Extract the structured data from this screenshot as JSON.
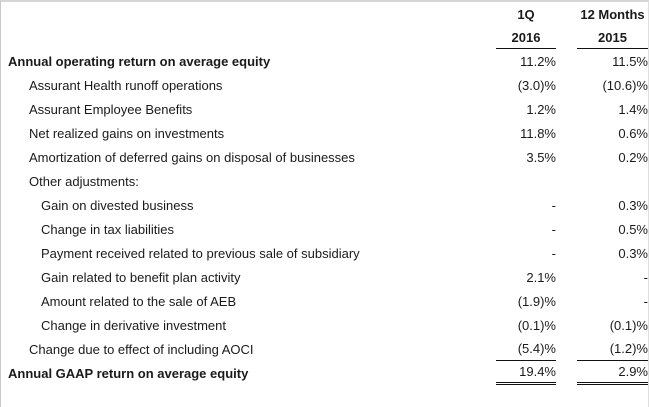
{
  "table": {
    "columns": [
      {
        "period": "1Q",
        "year": "2016"
      },
      {
        "period": "12 Months",
        "year": "2015"
      }
    ],
    "rows": [
      {
        "label": "Annual operating return on average equity",
        "indent": 0,
        "bold": true,
        "v1": "11.2%",
        "v2": "11.5%",
        "rule": ""
      },
      {
        "label": "Assurant Health runoff operations",
        "indent": 1,
        "bold": false,
        "v1": "(3.0)%",
        "v2": "(10.6)%",
        "rule": ""
      },
      {
        "label": "Assurant Employee Benefits",
        "indent": 1,
        "bold": false,
        "v1": "1.2%",
        "v2": "1.4%",
        "rule": ""
      },
      {
        "label": "Net realized gains on investments",
        "indent": 1,
        "bold": false,
        "v1": "11.8%",
        "v2": "0.6%",
        "rule": ""
      },
      {
        "label": "Amortization of deferred gains on disposal of businesses",
        "indent": 1,
        "bold": false,
        "v1": "3.5%",
        "v2": "0.2%",
        "rule": ""
      },
      {
        "label": "Other adjustments:",
        "indent": 1,
        "bold": false,
        "v1": "",
        "v2": "",
        "rule": ""
      },
      {
        "label": "Gain on divested business",
        "indent": 2,
        "bold": false,
        "v1": "-",
        "v2": "0.3%",
        "rule": ""
      },
      {
        "label": "Change in tax liabilities",
        "indent": 2,
        "bold": false,
        "v1": "-",
        "v2": "0.5%",
        "rule": ""
      },
      {
        "label": "Payment received related to previous sale of subsidiary",
        "indent": 2,
        "bold": false,
        "v1": "-",
        "v2": "0.3%",
        "rule": ""
      },
      {
        "label": "Gain related to benefit plan activity",
        "indent": 2,
        "bold": false,
        "v1": "2.1%",
        "v2": "-",
        "rule": ""
      },
      {
        "label": "Amount related to the sale of AEB",
        "indent": 2,
        "bold": false,
        "v1": "(1.9)%",
        "v2": "-",
        "rule": ""
      },
      {
        "label": "Change in derivative investment",
        "indent": 2,
        "bold": false,
        "v1": "(0.1)%",
        "v2": "(0.1)%",
        "rule": ""
      },
      {
        "label": "Change due to effect of including AOCI",
        "indent": 1,
        "bold": false,
        "v1": "(5.4)%",
        "v2": "(1.2)%",
        "rule": "single"
      },
      {
        "label": "Annual GAAP return on average equity",
        "indent": 0,
        "bold": true,
        "v1": "19.4%",
        "v2": "2.9%",
        "rule": "double"
      }
    ]
  },
  "colors": {
    "text": "#1a1a1a",
    "rule_line": "#111111",
    "frame_border": "#d6d6d6",
    "background": "#ffffff"
  }
}
